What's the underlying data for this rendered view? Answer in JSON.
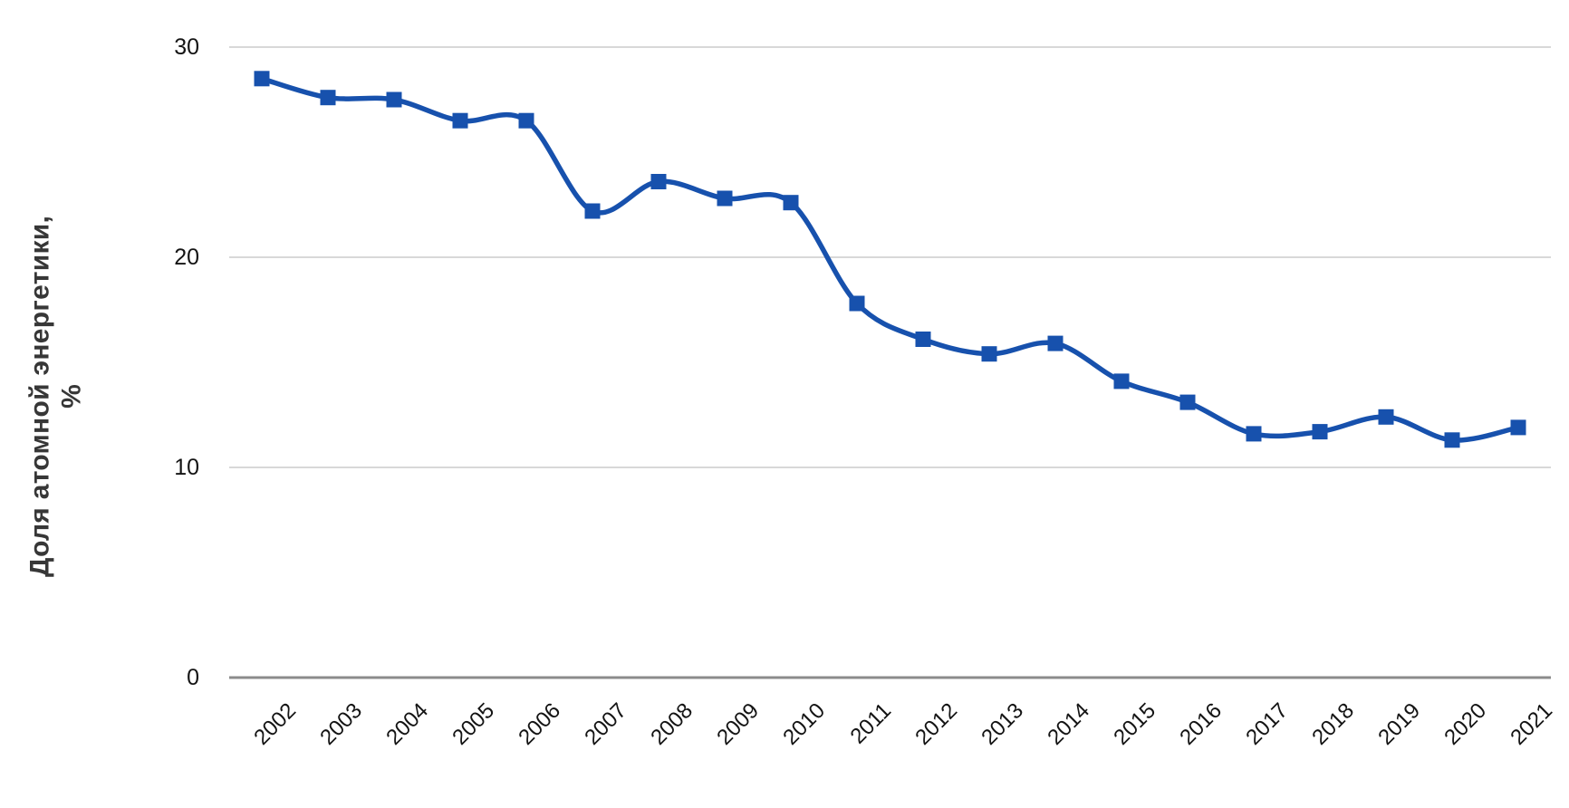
{
  "page": {
    "background": "#ffffff"
  },
  "chart_data": {
    "type": "line",
    "title": "",
    "x": [
      2002,
      2003,
      2004,
      2005,
      2006,
      2007,
      2008,
      2009,
      2010,
      2011,
      2012,
      2013,
      2014,
      2015,
      2016,
      2017,
      2018,
      2019,
      2020,
      2021
    ],
    "series": [
      {
        "name": "Доля атомной энергетики, %",
        "values": [
          28.5,
          27.6,
          27.5,
          26.5,
          26.5,
          22.2,
          23.6,
          22.8,
          22.6,
          17.8,
          16.1,
          15.4,
          15.9,
          14.1,
          13.1,
          11.6,
          11.7,
          12.4,
          11.3,
          11.9
        ]
      }
    ],
    "xlabel": "",
    "ylabel": "Доля атомной энергетики, %",
    "ylabel_lines": [
      "Доля атомной энергетики,",
      "%"
    ],
    "yticks": [
      0,
      10,
      20,
      30
    ],
    "ylim": [
      0,
      30
    ],
    "grid": "horizontal",
    "legend": "none",
    "smooth": true,
    "marker": "square",
    "colors": {
      "line": "#1751ad",
      "grid": "#d8d8d8",
      "axis": "#8c8c8c",
      "tick_text": "#141414",
      "axis_title_text": "#373737"
    }
  }
}
